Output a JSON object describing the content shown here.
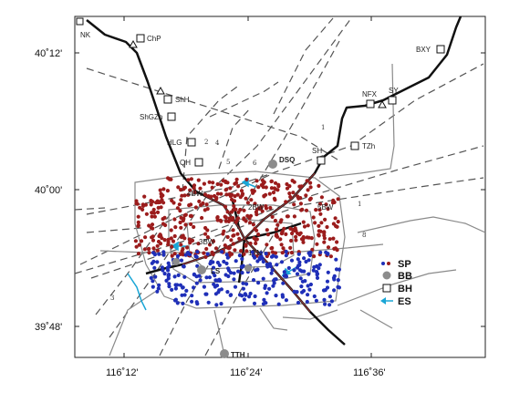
{
  "axes": {
    "lat_labels": [
      "40˚12'",
      "40˚00'",
      "39˚48'"
    ],
    "lon_labels": [
      "116˚12'",
      "116˚24'",
      "116˚36'"
    ]
  },
  "stations": {
    "bh": [
      {
        "label": "NK"
      },
      {
        "label": "ChP"
      },
      {
        "label": "BXY"
      },
      {
        "label": "ShH"
      },
      {
        "label": "ShGZh"
      },
      {
        "label": "NFX"
      },
      {
        "label": "SY"
      },
      {
        "label": "HLG"
      },
      {
        "label": "QH"
      },
      {
        "label": "TZh"
      },
      {
        "label": "SH"
      }
    ],
    "bb": [
      {
        "label": "DSQ"
      },
      {
        "label": "LS"
      },
      {
        "label": "TTH"
      }
    ]
  },
  "fault_numbers": [
    "1",
    "2",
    "3",
    "4",
    "5",
    "6",
    "8",
    "1"
  ],
  "legend": {
    "sp": "SP",
    "bb": "BB",
    "bh": "BH",
    "es": "ES"
  },
  "map_annotations": [
    "4BW",
    "5BW",
    "2BW",
    "3BW",
    "1TN"
  ],
  "colors": {
    "sp_red": "#9b1c1c",
    "sp_blue": "#1f2fb8",
    "bb_gray": "#8c8c8c",
    "es_arrow": "#1aa6d6",
    "road": "#111111",
    "fault": "#555555",
    "ring": "#8a8a8a"
  }
}
